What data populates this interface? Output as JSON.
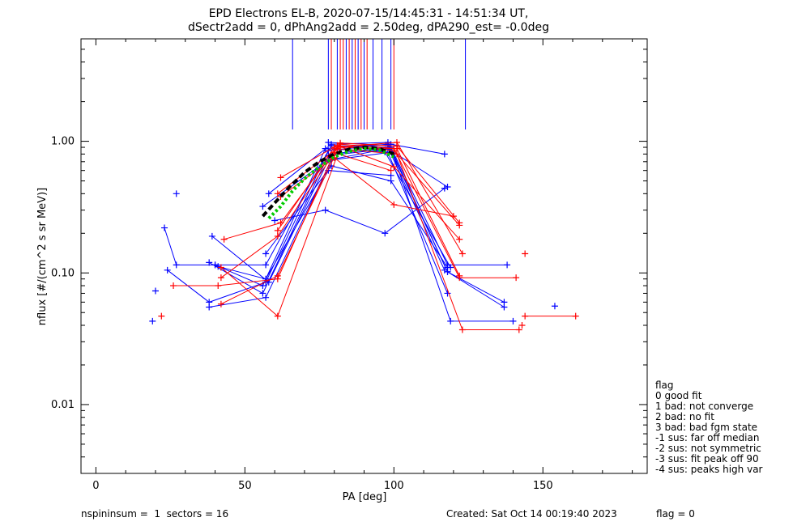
{
  "chart_data": {
    "type": "scatter",
    "title": "EPD Electrons EL-B, 2020-07-15/14:45:31 - 14:51:34 UT,",
    "subtitle": "dSectr2add = 0, dPhAng2add = 2.50deg, dPA290_est=  -0.0deg",
    "xlabel": "PA [deg]",
    "ylabel": "nflux [#/(cm^2 s sr MeV)]",
    "xlim": [
      -5,
      185
    ],
    "ylim": [
      0.003,
      6
    ],
    "y_scale": "log",
    "x_ticks": [
      0,
      50,
      100,
      150
    ],
    "x_tick_labels": [
      "0",
      "50",
      "100",
      "150"
    ],
    "y_ticks": [
      0.01,
      0.1,
      1.0
    ],
    "y_tick_labels": [
      "0.01",
      "0.10",
      "1.00"
    ],
    "grid": false,
    "series": [
      {
        "color": "#0000ff",
        "x": [
          23,
          27,
          40,
          57,
          79,
          99,
          118,
          138
        ],
        "y": [
          0.22,
          0.115,
          0.115,
          0.115,
          0.93,
          0.9,
          0.115,
          0.115
        ]
      },
      {
        "color": "#0000ff",
        "x": [
          24,
          38,
          57,
          78,
          98,
          118,
          137
        ],
        "y": [
          0.105,
          0.06,
          0.085,
          0.85,
          0.95,
          0.102,
          0.055
        ]
      },
      {
        "color": "#0000ff",
        "x": [
          38,
          56,
          78,
          99,
          119,
          140
        ],
        "y": [
          0.12,
          0.07,
          0.78,
          0.88,
          0.043,
          0.043
        ]
      },
      {
        "color": "#0000ff",
        "x": [
          38,
          57,
          79,
          98,
          118
        ],
        "y": [
          0.055,
          0.065,
          0.72,
          0.82,
          0.07
        ]
      },
      {
        "color": "#0000ff",
        "x": [
          39,
          58,
          79,
          98,
          117
        ],
        "y": [
          0.19,
          0.085,
          0.8,
          0.9,
          0.105
        ]
      },
      {
        "color": "#0000ff",
        "x": [
          40,
          56,
          77,
          97,
          119
        ],
        "y": [
          0.115,
          0.08,
          0.88,
          0.83,
          0.11
        ]
      },
      {
        "color": "#0000ff",
        "x": [
          41,
          57,
          78,
          99
        ],
        "y": [
          0.112,
          0.09,
          0.6,
          0.55
        ]
      },
      {
        "color": "#0000ff",
        "x": [
          58,
          79,
          98,
          118,
          137
        ],
        "y": [
          0.4,
          0.95,
          0.98,
          0.102,
          0.06
        ]
      },
      {
        "color": "#0000ff",
        "x": [
          56,
          78,
          98,
          118
        ],
        "y": [
          0.32,
          0.72,
          0.88,
          0.45
        ]
      },
      {
        "color": "#0000ff",
        "x": [
          60,
          77,
          97,
          117
        ],
        "y": [
          0.25,
          0.3,
          0.2,
          0.44
        ]
      },
      {
        "color": "#0000ff",
        "x": [
          57,
          79,
          99,
          118
        ],
        "y": [
          0.14,
          0.65,
          0.5,
          0.11
        ]
      },
      {
        "color": "#0000ff",
        "x": [
          78,
          98
        ],
        "y": [
          0.98,
          0.93
        ]
      },
      {
        "color": "#0000ff",
        "x": [
          80,
          99,
          117
        ],
        "y": [
          0.9,
          0.95,
          0.8
        ]
      },
      {
        "color": "#ff0000",
        "x": [
          42,
          61,
          82,
          100,
          122,
          141
        ],
        "y": [
          0.11,
          0.047,
          0.9,
          0.88,
          0.092,
          0.092
        ]
      },
      {
        "color": "#ff0000",
        "x": [
          42,
          61,
          82,
          101,
          122
        ],
        "y": [
          0.058,
          0.095,
          0.95,
          0.88,
          0.095
        ]
      },
      {
        "color": "#ff0000",
        "x": [
          43,
          62,
          82,
          101,
          122
        ],
        "y": [
          0.18,
          0.24,
          0.97,
          0.92,
          0.24
        ]
      },
      {
        "color": "#ff0000",
        "x": [
          42,
          61,
          81,
          101,
          123,
          142
        ],
        "y": [
          0.092,
          0.19,
          0.88,
          0.8,
          0.037,
          0.037
        ]
      },
      {
        "color": "#ff0000",
        "x": [
          61,
          82,
          100,
          122
        ],
        "y": [
          0.4,
          0.92,
          0.85,
          0.23
        ]
      },
      {
        "color": "#ff0000",
        "x": [
          62,
          81,
          100,
          122
        ],
        "y": [
          0.53,
          0.93,
          0.64,
          0.18
        ]
      },
      {
        "color": "#ff0000",
        "x": [
          61,
          80,
          101,
          123
        ],
        "y": [
          0.21,
          0.9,
          0.98,
          0.14
        ]
      },
      {
        "color": "#ff0000",
        "x": [
          62,
          80,
          100,
          120
        ],
        "y": [
          0.38,
          0.75,
          0.33,
          0.27
        ]
      },
      {
        "color": "#ff0000",
        "x": [
          26,
          41,
          61,
          80,
          99
        ],
        "y": [
          0.08,
          0.08,
          0.09,
          0.82,
          0.6
        ]
      },
      {
        "color": "#ff0000",
        "x": [
          144,
          161
        ],
        "y": [
          0.047,
          0.047
        ]
      }
    ],
    "extra_points": [
      {
        "color": "#0000ff",
        "x": 19,
        "y": 0.043
      },
      {
        "color": "#0000ff",
        "x": 20,
        "y": 0.073
      },
      {
        "color": "#0000ff",
        "x": 27,
        "y": 0.4
      },
      {
        "color": "#0000ff",
        "x": 154,
        "y": 0.056
      },
      {
        "color": "#ff0000",
        "x": 22,
        "y": 0.047
      },
      {
        "color": "#ff0000",
        "x": 144,
        "y": 0.14
      },
      {
        "color": "#ff0000",
        "x": 143,
        "y": 0.04
      }
    ],
    "fit_curves": [
      {
        "color": "#000000",
        "style": "dashed",
        "x": [
          56,
          60,
          65,
          70,
          75,
          80,
          85,
          90,
          95,
          100
        ],
        "y": [
          0.27,
          0.34,
          0.45,
          0.58,
          0.7,
          0.8,
          0.87,
          0.9,
          0.88,
          0.8
        ]
      },
      {
        "color": "#00cc00",
        "style": "dotted",
        "x": [
          58,
          62,
          66,
          70,
          75,
          80,
          85,
          90,
          95,
          100
        ],
        "y": [
          0.26,
          0.32,
          0.42,
          0.52,
          0.64,
          0.76,
          0.84,
          0.88,
          0.86,
          0.76
        ]
      }
    ],
    "vertical_lines": [
      {
        "color": "#0000ff",
        "x": 66
      },
      {
        "color": "#0000ff",
        "x": 78
      },
      {
        "color": "#0000ff",
        "x": 81
      },
      {
        "color": "#0000ff",
        "x": 84
      },
      {
        "color": "#0000ff",
        "x": 86
      },
      {
        "color": "#0000ff",
        "x": 88
      },
      {
        "color": "#0000ff",
        "x": 90
      },
      {
        "color": "#0000ff",
        "x": 93
      },
      {
        "color": "#0000ff",
        "x": 96
      },
      {
        "color": "#0000ff",
        "x": 99
      },
      {
        "color": "#0000ff",
        "x": 124
      },
      {
        "color": "#ff0000",
        "x": 79
      },
      {
        "color": "#ff0000",
        "x": 82
      },
      {
        "color": "#ff0000",
        "x": 83
      },
      {
        "color": "#ff0000",
        "x": 85
      },
      {
        "color": "#ff0000",
        "x": 87
      },
      {
        "color": "#ff0000",
        "x": 89
      },
      {
        "color": "#ff0000",
        "x": 91
      },
      {
        "color": "#ff0000",
        "x": 100
      }
    ],
    "legend_placement": "right",
    "legend_title": "flag",
    "legend_entries": [
      " 0 good fit",
      " 1 bad: not converge",
      " 2 bad: no fit",
      " 3 bad: bad fgm state",
      "-1 sus: far off median",
      "-2 sus: not symmetric",
      "-3 sus: fit peak off 90",
      "-4 sus: peaks high var"
    ]
  },
  "footer": {
    "left": "nspininsum =  1  sectors = 16",
    "created": "Created: Sat Oct 14 00:19:40 2023",
    "flag": "flag = 0"
  }
}
